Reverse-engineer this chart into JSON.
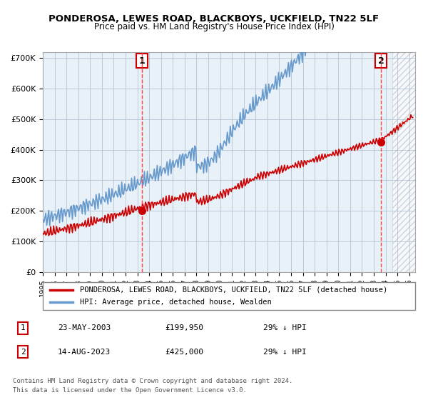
{
  "title": "PONDEROSA, LEWES ROAD, BLACKBOYS, UCKFIELD, TN22 5LF",
  "subtitle": "Price paid vs. HM Land Registry's House Price Index (HPI)",
  "xlim_start": 1995.0,
  "xlim_end": 2026.5,
  "ylim": [
    0,
    720000
  ],
  "yticks": [
    0,
    100000,
    200000,
    300000,
    400000,
    500000,
    600000,
    700000
  ],
  "ytick_labels": [
    "£0",
    "£100K",
    "£200K",
    "£300K",
    "£400K",
    "£500K",
    "£600K",
    "£700K"
  ],
  "sale1_date_x": 2003.39,
  "sale1_price": 199950,
  "sale1_label": "1",
  "sale2_date_x": 2023.62,
  "sale2_price": 425000,
  "sale2_label": "2",
  "legend_line1": "PONDEROSA, LEWES ROAD, BLACKBOYS, UCKFIELD, TN22 5LF (detached house)",
  "legend_line2": "HPI: Average price, detached house, Wealden",
  "table_row1": [
    "1",
    "23-MAY-2003",
    "£199,950",
    "29% ↓ HPI"
  ],
  "table_row2": [
    "2",
    "14-AUG-2023",
    "£425,000",
    "29% ↓ HPI"
  ],
  "footer1": "Contains HM Land Registry data © Crown copyright and database right 2024.",
  "footer2": "This data is licensed under the Open Government Licence v3.0.",
  "hpi_color": "#6699cc",
  "price_color": "#cc0000",
  "bg_color": "#e8f0f8",
  "grid_color": "#aabbcc",
  "vline_color": "#ff4444",
  "hatch_color": "#cccccc"
}
